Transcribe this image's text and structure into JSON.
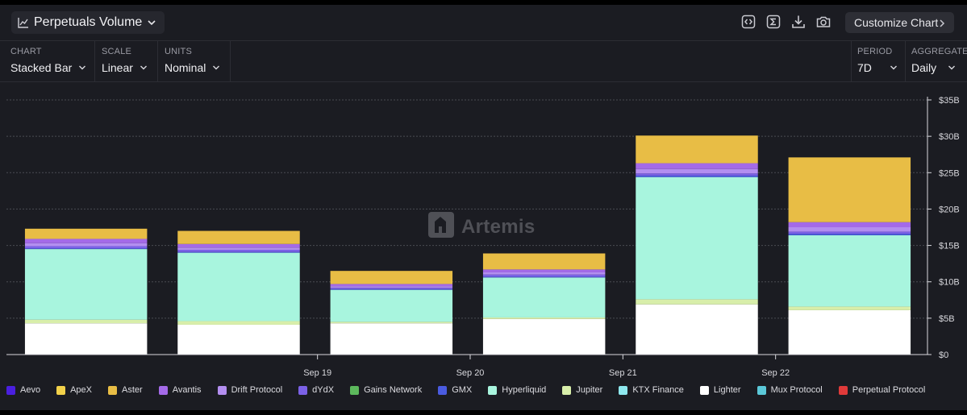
{
  "header": {
    "title": "Perpetuals Volume",
    "icons": [
      "code-embed-icon",
      "sigma-icon",
      "download-icon",
      "camera-icon"
    ],
    "customize_label": "Customize Chart"
  },
  "controls": {
    "chart": {
      "label": "CHART",
      "value": "Stacked Bar"
    },
    "scale": {
      "label": "SCALE",
      "value": "Linear"
    },
    "units": {
      "label": "UNITS",
      "value": "Nominal"
    },
    "period": {
      "label": "PERIOD",
      "value": "7D"
    },
    "aggregate": {
      "label": "AGGREGATE",
      "value": "Daily"
    }
  },
  "watermark": "Artemis",
  "chart_data": {
    "type": "bar",
    "stacked": true,
    "x_tick_labels": [
      "",
      "Sep 19",
      "Sep 20",
      "Sep 21",
      "Sep 22",
      ""
    ],
    "y_axis": {
      "position": "right",
      "min": 0,
      "max": 35,
      "unit": "$B",
      "ticks": [
        0,
        5,
        10,
        15,
        20,
        25,
        30,
        35
      ],
      "tick_labels": [
        "$0",
        "$5B",
        "$10B",
        "$15B",
        "$20B",
        "$25B",
        "$30B",
        "$35B"
      ]
    },
    "grid": true,
    "legend_position": "bottom",
    "series": [
      {
        "name": "Aevo",
        "color": "#4a1fe0",
        "values": [
          0,
          0,
          0,
          0,
          0,
          0
        ]
      },
      {
        "name": "ApeX",
        "color": "#f2d14a",
        "values": [
          0,
          0,
          0,
          0,
          0,
          0
        ]
      },
      {
        "name": "Aster",
        "color": "#e8bd45",
        "values": [
          1.4,
          1.8,
          1.8,
          2.2,
          3.8,
          8.9
        ]
      },
      {
        "name": "Avantis",
        "color": "#a46ae8",
        "values": [
          0.6,
          0.5,
          0.3,
          0.4,
          0.8,
          0.7
        ]
      },
      {
        "name": "Drift Protocol",
        "color": "#b38ef0",
        "values": [
          0.4,
          0.3,
          0.2,
          0.3,
          0.6,
          0.6
        ]
      },
      {
        "name": "dYdX",
        "color": "#7b61e6",
        "values": [
          0.3,
          0.3,
          0.2,
          0.3,
          0.3,
          0.3
        ]
      },
      {
        "name": "Gains Network",
        "color": "#5cb85c",
        "values": [
          0,
          0,
          0,
          0,
          0,
          0
        ]
      },
      {
        "name": "GMX",
        "color": "#4a5be0",
        "values": [
          0.1,
          0.1,
          0.1,
          0.1,
          0.2,
          0.2
        ]
      },
      {
        "name": "Hyperliquid",
        "color": "#a8f5de",
        "values": [
          9.7,
          9.4,
          4.4,
          5.5,
          16.8,
          9.8
        ]
      },
      {
        "name": "Jupiter",
        "color": "#d8eeaa",
        "values": [
          0.5,
          0.5,
          0.2,
          0.2,
          0.7,
          0.5
        ]
      },
      {
        "name": "KTX Finance",
        "color": "#8ee8ee",
        "values": [
          0,
          0,
          0,
          0,
          0,
          0
        ]
      },
      {
        "name": "Lighter",
        "color": "#ffffff",
        "values": [
          4.3,
          4.1,
          4.3,
          4.9,
          6.9,
          6.1
        ]
      },
      {
        "name": "Mux Protocol",
        "color": "#5bc8d8",
        "values": [
          0,
          0,
          0,
          0,
          0,
          0
        ]
      },
      {
        "name": "Perpetual Protocol",
        "color": "#e03a3a",
        "values": [
          0,
          0,
          0,
          0,
          0,
          0
        ]
      }
    ]
  }
}
